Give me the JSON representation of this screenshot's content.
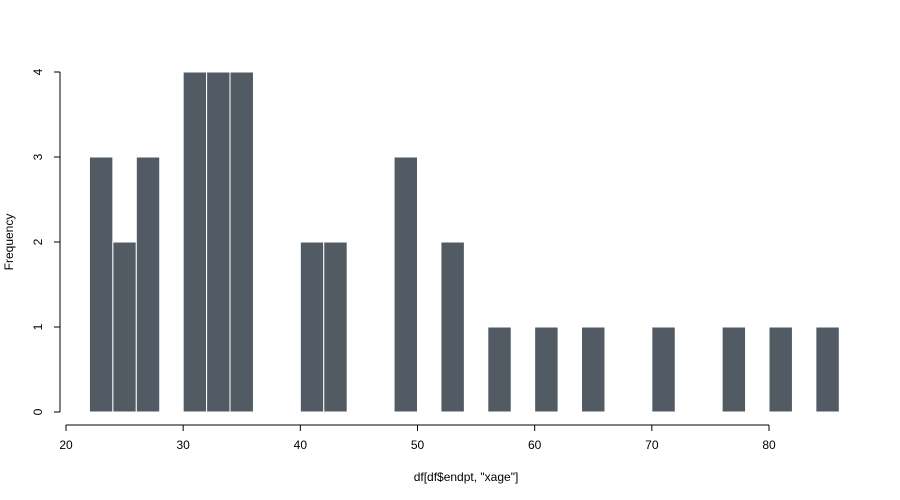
{
  "chart_data": {
    "type": "histogram",
    "x_label": "df[df$endpt, \"xage\"]",
    "y_label": "Frequency",
    "bins": [
      22,
      24,
      26,
      28,
      30,
      32,
      34,
      36,
      38,
      40,
      42,
      44,
      46,
      48,
      50,
      52,
      54,
      56,
      58,
      60,
      62,
      64,
      66,
      68,
      70,
      72,
      74,
      76,
      78,
      80,
      82,
      84,
      86
    ],
    "counts": [
      3,
      2,
      3,
      0,
      4,
      4,
      4,
      0,
      0,
      2,
      2,
      0,
      0,
      3,
      0,
      2,
      0,
      1,
      0,
      1,
      0,
      1,
      0,
      0,
      1,
      0,
      0,
      1,
      0,
      1,
      0,
      1
    ],
    "color": "#525b63",
    "xlim": [
      20,
      80
    ],
    "xticks": [
      20,
      30,
      40,
      50,
      60,
      70,
      80
    ],
    "ylim": [
      0,
      4
    ],
    "yticks": [
      0,
      1,
      2,
      3,
      4
    ]
  }
}
